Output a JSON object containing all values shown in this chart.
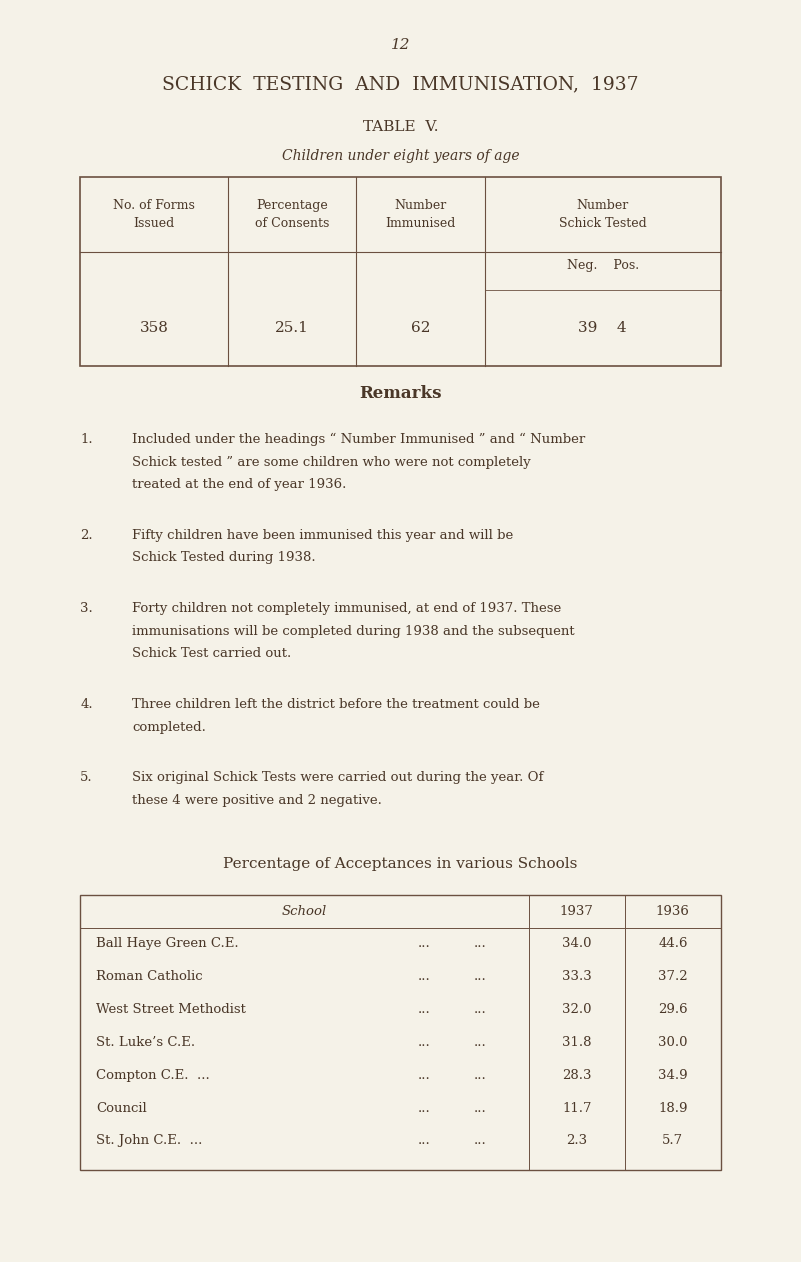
{
  "page_number": "12",
  "main_title": "SCHICK  TESTING  AND  IMMUNISATION,  1937",
  "table1_title": "TABLE  V.",
  "table1_subtitle": "Children under eight years of age",
  "table1_headers": [
    "No. of Forms\nIssued",
    "Percentage\nof Consents",
    "Number\nImmunised",
    "Number\nSchick Tested"
  ],
  "table1_subheaders": [
    "",
    "",
    "",
    "Neg.    Pos."
  ],
  "table1_data": [
    [
      "358",
      "25.1",
      "62",
      "39    4"
    ]
  ],
  "remarks_title": "Remarks",
  "remarks": [
    "Included under the headings “ Number Immunised ” and “ Number Schick tested ” are some children who were not completely treated at the end of year 1936.",
    "Fifty children have been immunised this year and will be Schick Tested during 1938.",
    "Forty children not completely immunised, at end of 1937.  These immunisations will be completed during 1938 and the subsequent Schick Test carried out.",
    "Three children left the district before  the treatment could be completed.",
    "Six original Schick Tests were carried out during the year.  Of these 4 were positive and 2 negative."
  ],
  "table2_title": "Percentage of Acceptances in various Schools",
  "table2_headers": [
    "School",
    "",
    "",
    "1937",
    "1936"
  ],
  "table2_data": [
    [
      "Ball Haye Green C.E.",
      "...",
      "...",
      "34.0",
      "44.6"
    ],
    [
      "Roman Catholic",
      "...",
      "...",
      "33.3",
      "37.2"
    ],
    [
      "West Street Methodist",
      "...",
      "...",
      "32.0",
      "29.6"
    ],
    [
      "St. Luke’s C.E.",
      "...",
      "...",
      "31.8",
      "30.0"
    ],
    [
      "Compton C.E.  ...",
      "...",
      "...",
      "28.3",
      "34.9"
    ],
    [
      "Council",
      "...",
      "...",
      "11.7",
      "18.9"
    ],
    [
      "St. John C.E.  ...",
      "...",
      "...",
      "2.3",
      "5.7"
    ]
  ],
  "bg_color": "#f5f2e8",
  "text_color": "#4a3728",
  "border_color": "#6b5040"
}
